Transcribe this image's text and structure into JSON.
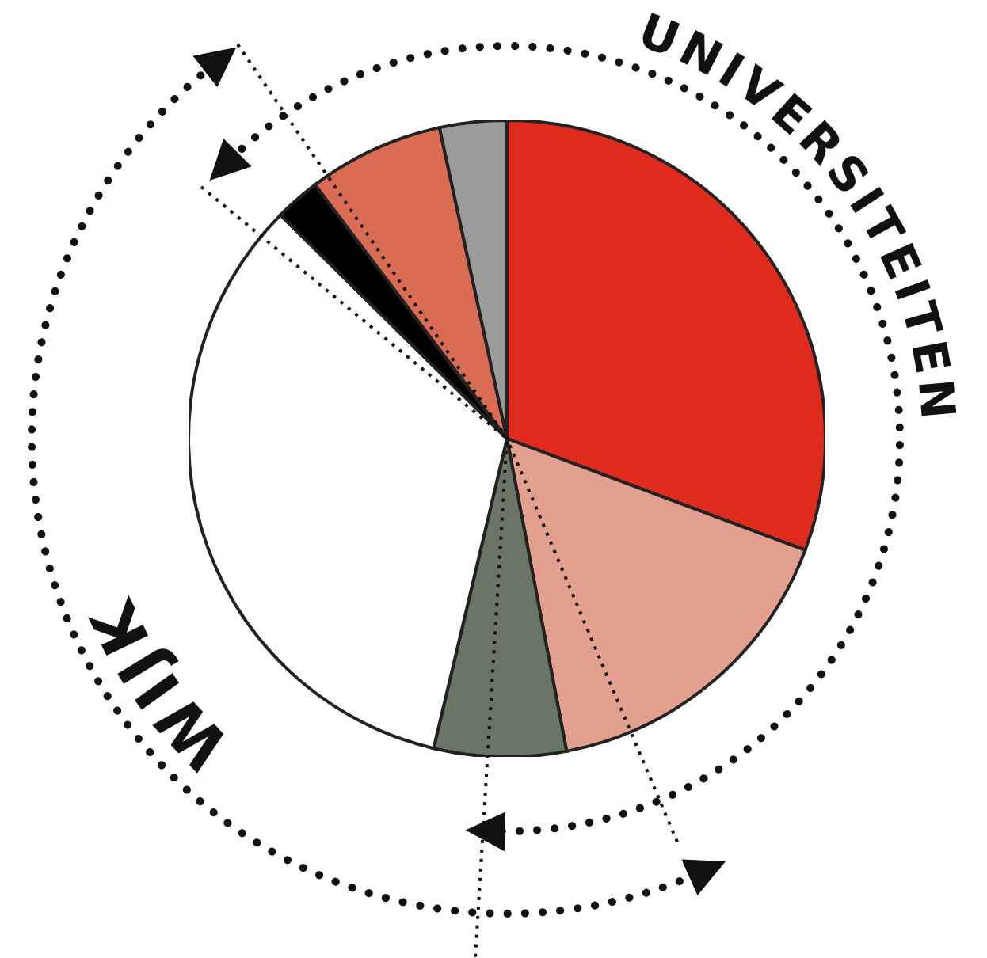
{
  "chart_data": {
    "type": "pie",
    "categories": [
      null,
      null,
      null,
      null,
      null,
      null,
      null
    ],
    "values": [
      30.7,
      16.3,
      6.7,
      33.7,
      2.3,
      6.9,
      3.4
    ],
    "colors": [
      "#de2b1e",
      "#e4a08f",
      "#6b7565",
      "#ffffff",
      "#000000",
      "#d96c52",
      "#9b9b99"
    ],
    "annotations": [
      "UNIVERSITEITEN",
      "WIJK"
    ]
  }
}
